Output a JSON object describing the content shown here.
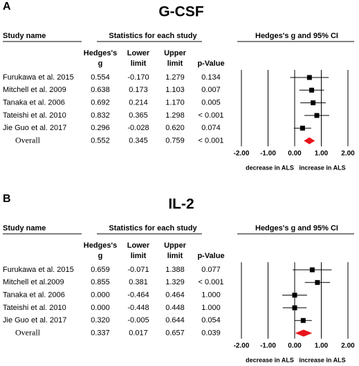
{
  "chart_data": [
    {
      "type": "forest",
      "label": "A",
      "title": "G-CSF",
      "headers": {
        "study": "Study name",
        "stats": "Statistics for each study",
        "plot": "Hedges's g and 95% CI",
        "columns": [
          [
            "Hedges's",
            "g"
          ],
          [
            "Lower",
            "limit"
          ],
          [
            "Upper",
            "limit"
          ],
          [
            "p-Value"
          ]
        ]
      },
      "categories": [
        "Furukawa et al. 2015",
        "Mitchell et al. 2009",
        "Tanaka et al. 2006",
        "Tateishi et al. 2010",
        "Jie Guo et al. 2017",
        "Overall"
      ],
      "values": [
        0.554,
        0.638,
        0.692,
        0.832,
        0.296,
        0.552
      ],
      "lower": [
        -0.17,
        0.173,
        0.214,
        0.365,
        -0.028,
        0.345
      ],
      "lower_labels": [
        "-0.170",
        "0.173",
        "0.214",
        "0.365",
        "-0.028",
        "0.345"
      ],
      "upper": [
        1.279,
        1.103,
        1.17,
        1.298,
        0.62,
        0.759
      ],
      "upper_labels": [
        "1.279",
        "1.103",
        "1.170",
        "1.298",
        "0.620",
        "0.759"
      ],
      "p_values": [
        "0.134",
        "0.007",
        "0.005",
        "< 0.001",
        "0.074",
        "< 0.001"
      ],
      "xlim": [
        -2,
        2
      ],
      "xticks": [
        {
          "value": -2,
          "label": "-2.00"
        },
        {
          "value": -1,
          "label": "-1.00"
        },
        {
          "value": 0,
          "label": "0.00"
        },
        {
          "value": 1,
          "label": "1.00"
        },
        {
          "value": 2,
          "label": "2.00"
        }
      ],
      "xlabels": [
        "decrease in ALS",
        "increase in ALS"
      ],
      "color": "#000000",
      "overall_color": "#e8141c"
    },
    {
      "type": "forest",
      "label": "B",
      "title": "IL-2",
      "headers": {
        "study": "Study name",
        "stats": "Statistics for each study",
        "plot": "Hedges's g and 95% CI",
        "columns": [
          [
            "Hedges's",
            "g"
          ],
          [
            "Lower",
            "limit"
          ],
          [
            "Upper",
            "limit"
          ],
          [
            "p-Value"
          ]
        ]
      },
      "categories": [
        "Furukawa et al. 2015",
        "Mitchell et al.2009",
        "Tanaka et al. 2006",
        "Tateishi et al. 2010",
        "Jie Guo et al. 2017",
        "Overall"
      ],
      "values": [
        0.659,
        0.855,
        0,
        0,
        0.32,
        0.337
      ],
      "value_labels": [
        "0.659",
        "0.855",
        "0.000",
        "0.000",
        "0.320",
        "0.337"
      ],
      "lower": [
        -0.071,
        0.381,
        -0.464,
        -0.448,
        -0.005,
        0.017
      ],
      "lower_labels": [
        "-0.071",
        "0.381",
        "-0.464",
        "-0.448",
        "-0.005",
        "0.017"
      ],
      "upper": [
        1.388,
        1.329,
        0.464,
        0.448,
        0.644,
        0.657
      ],
      "upper_labels": [
        "1.388",
        "1.329",
        "0.464",
        "0.448",
        "0.644",
        "0.657"
      ],
      "p_values": [
        "0.077",
        "< 0.001",
        "1.000",
        "1.000",
        "0.054",
        "0.039"
      ],
      "xlim": [
        -2,
        2
      ],
      "xticks": [
        {
          "value": -2,
          "label": "-2.00"
        },
        {
          "value": -1,
          "label": "-1.00"
        },
        {
          "value": 0,
          "label": "0.00"
        },
        {
          "value": 1,
          "label": "1.00"
        },
        {
          "value": 2,
          "label": "2.00"
        }
      ],
      "xlabels": [
        "decrease in ALS",
        "increase in ALS"
      ],
      "color": "#000000",
      "overall_color": "#e8141c"
    }
  ]
}
